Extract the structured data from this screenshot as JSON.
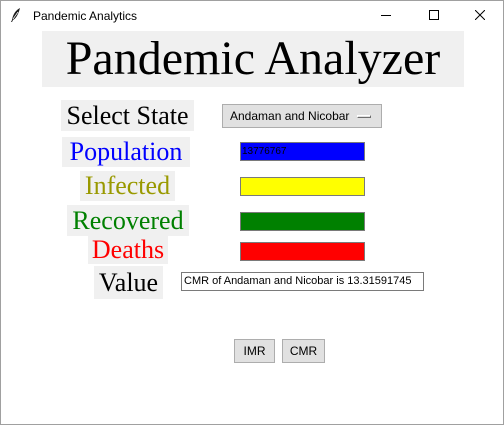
{
  "window": {
    "title": "Pandemic Analytics"
  },
  "heading": "Pandemic Analyzer",
  "labels": {
    "select_state": "Select State",
    "population": "Population",
    "infected": "Infected",
    "recovered": "Recovered",
    "deaths": "Deaths",
    "value": "Value"
  },
  "state_dropdown": {
    "selected": "Andaman and Nicobar"
  },
  "fields": {
    "population": "13776767",
    "infected": "",
    "recovered": "",
    "deaths": ""
  },
  "value_output": "CMR of Andaman and Nicobar is 13.31591745",
  "buttons": {
    "imr": "IMR",
    "cmr": "CMR"
  },
  "colors": {
    "population": "#0000ff",
    "infected": "#ffff00",
    "recovered": "#008000",
    "deaths": "#ff0000"
  },
  "icons": {
    "app": "feather-icon",
    "minimize": "minimize-icon",
    "maximize": "maximize-icon",
    "close": "close-icon"
  }
}
